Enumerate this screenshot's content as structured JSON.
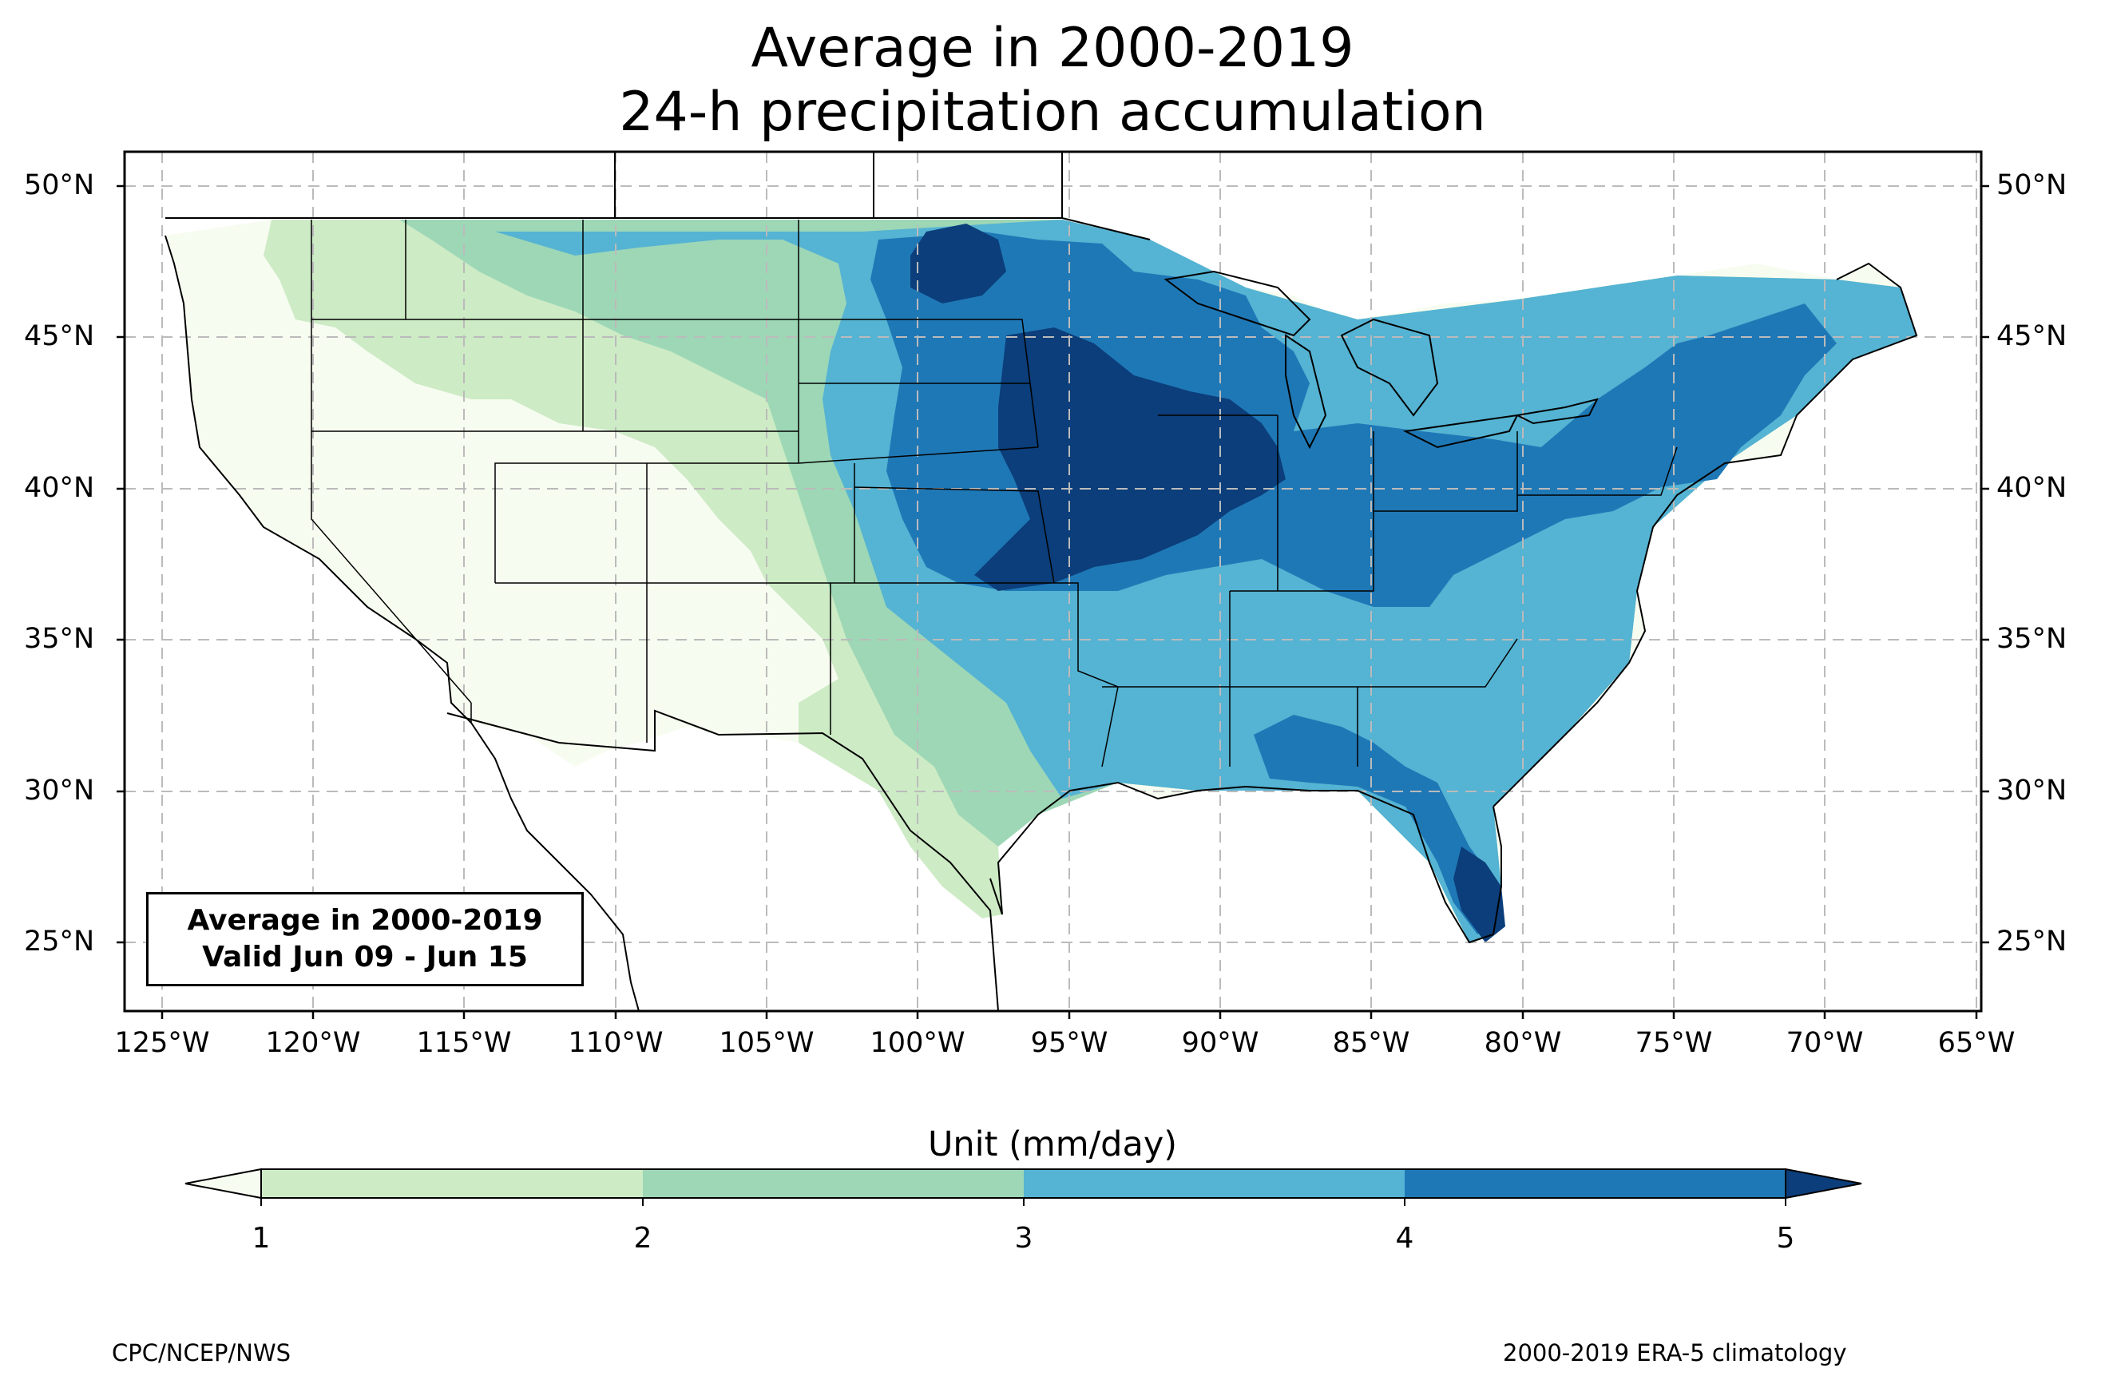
{
  "title": {
    "line1": "Average in 2000-2019",
    "line2": "24-h precipitation accumulation"
  },
  "info_box": {
    "line1": "Average in 2000-2019",
    "line2": "Valid Jun 09 - Jun 15"
  },
  "axes": {
    "lat_labels": [
      "50°N",
      "45°N",
      "40°N",
      "35°N",
      "30°N",
      "25°N"
    ],
    "lon_labels": [
      "125°W",
      "120°W",
      "115°W",
      "110°W",
      "105°W",
      "100°W",
      "95°W",
      "90°W",
      "85°W",
      "80°W",
      "75°W",
      "70°W",
      "65°W"
    ]
  },
  "colorbar": {
    "title": "Unit (mm/day)",
    "ticks": [
      "1",
      "2",
      "3",
      "4",
      "5"
    ],
    "colors": {
      "below_1": "#f7fcf0",
      "1_2": "#cdebc5",
      "2_3": "#9dd7b6",
      "3_4": "#55b3d3",
      "4_5": "#1f78b6",
      "above_5": "#0b3e7a"
    }
  },
  "footer": {
    "left": "CPC/NCEP/NWS",
    "right": "2000-2019 ERA-5 climatology"
  },
  "map": {
    "projection": "PlateCarree",
    "lon_range": [
      -126.2,
      -64.8
    ],
    "lat_range": [
      22.7,
      51.2
    ],
    "grid": "dashed",
    "precip_regions": [
      {
        "level": "below_1",
        "desc": "Southwest deserts and Great Basin"
      },
      {
        "level": "1_2",
        "desc": "Rockies and western high plains"
      },
      {
        "level": "2_3",
        "desc": "Central plains transition"
      },
      {
        "level": "3_4",
        "desc": "Eastern U.S. broad area"
      },
      {
        "level": "4_5",
        "desc": "Upper Midwest, Ohio Valley, Northeast"
      },
      {
        "level": "above_5",
        "desc": "Iowa/Nebraska core, Minnesota-Dakota border, South Florida"
      }
    ]
  }
}
